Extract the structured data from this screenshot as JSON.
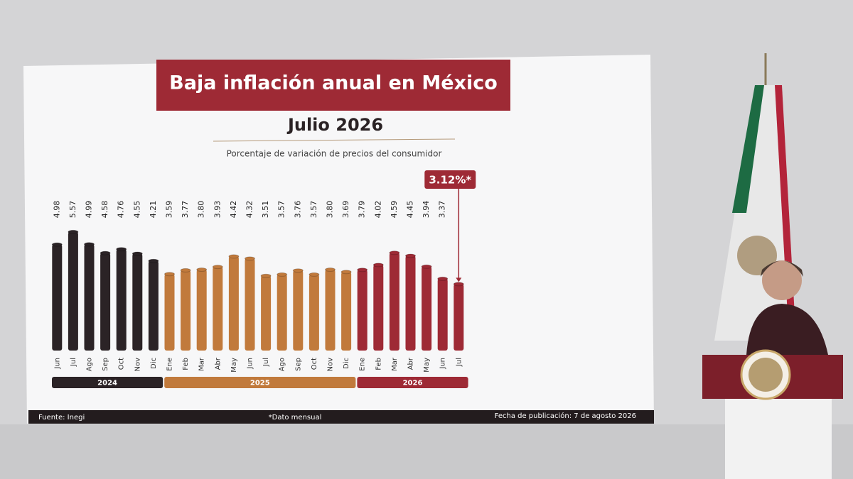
{
  "chart_data": {
    "type": "bar",
    "title": "Baja inflación anual en México",
    "subtitle": "Julio 2026",
    "y_label": "Porcentaje de variación de precios del consumidor",
    "categories": [
      "Jun",
      "Jul",
      "Ago",
      "Sep",
      "Oct",
      "Nov",
      "Dic",
      "Ene",
      "Feb",
      "Mar",
      "Abr",
      "May",
      "Jun",
      "Jul",
      "Ago",
      "Sep",
      "Oct",
      "Nov",
      "Dic",
      "Ene",
      "Feb",
      "Mar",
      "Abr",
      "May",
      "Jun",
      "Jul"
    ],
    "series": [
      {
        "name": "2024",
        "color": "#2b2326",
        "values": [
          4.98,
          5.57,
          4.99,
          4.58,
          4.76,
          4.55,
          4.21,
          null,
          null,
          null,
          null,
          null,
          null,
          null,
          null,
          null,
          null,
          null,
          null,
          null,
          null,
          null,
          null,
          null,
          null,
          null
        ],
        "value_labels": [
          "4.98",
          "5.57",
          "4.99",
          "4.58",
          "4.76",
          "4.55",
          "4.21",
          null,
          null,
          null,
          null,
          null,
          null,
          null,
          null,
          null,
          null,
          null,
          null,
          null,
          null,
          null,
          null,
          null,
          null,
          null
        ]
      },
      {
        "name": "2025",
        "color": "#c17a3c",
        "values": [
          null,
          null,
          null,
          null,
          null,
          null,
          null,
          3.59,
          3.77,
          3.8,
          3.93,
          4.42,
          4.32,
          3.51,
          3.57,
          3.76,
          3.57,
          3.8,
          3.69,
          null,
          null,
          null,
          null,
          null,
          null,
          null
        ],
        "value_labels": [
          null,
          null,
          null,
          null,
          null,
          null,
          null,
          "3.59",
          "3.77",
          "3.80",
          "3.93",
          "4.42",
          "4.32",
          "3.51",
          "3.57",
          "3.76",
          "3.57",
          "3.80",
          "3.69",
          null,
          null,
          null,
          null,
          null,
          null,
          null
        ]
      },
      {
        "name": "2026",
        "color": "#9e2a35",
        "values": [
          null,
          null,
          null,
          null,
          null,
          null,
          null,
          null,
          null,
          null,
          null,
          null,
          null,
          null,
          null,
          null,
          null,
          null,
          null,
          3.79,
          4.02,
          4.59,
          4.45,
          3.94,
          3.37,
          3.12
        ],
        "value_labels": [
          null,
          null,
          null,
          null,
          null,
          null,
          null,
          null,
          null,
          null,
          null,
          null,
          null,
          null,
          null,
          null,
          null,
          null,
          null,
          "3.79",
          "4.02",
          "4.59",
          "4.45",
          "3.94",
          "3.37",
          "3.12%*"
        ]
      }
    ],
    "ylim": [
      0,
      6
    ],
    "footer": {
      "source": "Fuente: Inegi",
      "note": "*Dato mensual",
      "date": "Fecha de publicación: 7 de agosto 2026"
    }
  }
}
